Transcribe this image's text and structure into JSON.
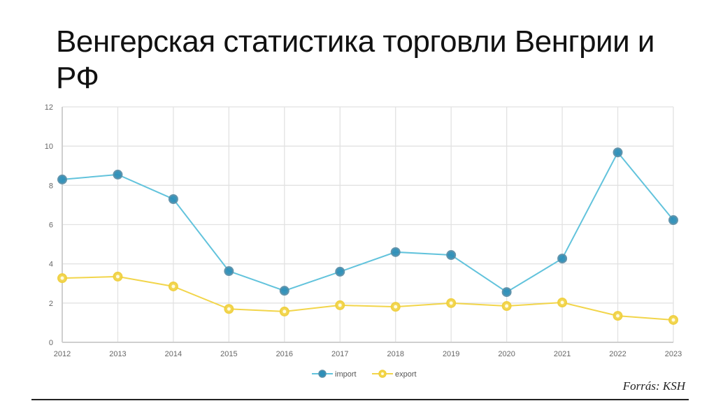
{
  "slide": {
    "title": "Венгерская статистика торговли Венгрии и РФ",
    "source": "Forrás: KSH"
  },
  "colors": {
    "import_line": "#62C3DC",
    "import_marker": "#2E8FB8",
    "export_line": "#F2D54A",
    "export_marker": "#F2D54A",
    "grid": "#E2E2E2",
    "axis_text": "#666666"
  },
  "chart_data": {
    "type": "line",
    "title": "",
    "xlabel": "",
    "ylabel": "",
    "categories": [
      "2012",
      "2013",
      "2014",
      "2015",
      "2016",
      "2017",
      "2018",
      "2019",
      "2020",
      "2021",
      "2022",
      "2023"
    ],
    "series": [
      {
        "name": "import",
        "values": [
          8.3,
          8.55,
          7.3,
          3.63,
          2.63,
          3.6,
          4.6,
          4.45,
          2.56,
          4.27,
          9.68,
          6.23
        ]
      },
      {
        "name": "export",
        "values": [
          3.27,
          3.35,
          2.85,
          1.7,
          1.57,
          1.89,
          1.81,
          2.0,
          1.85,
          2.03,
          1.35,
          1.14
        ]
      }
    ],
    "ylim": [
      0,
      12
    ],
    "yticks": [
      0,
      2,
      4,
      6,
      8,
      10,
      12
    ],
    "grid": true,
    "legend_position": "bottom"
  }
}
